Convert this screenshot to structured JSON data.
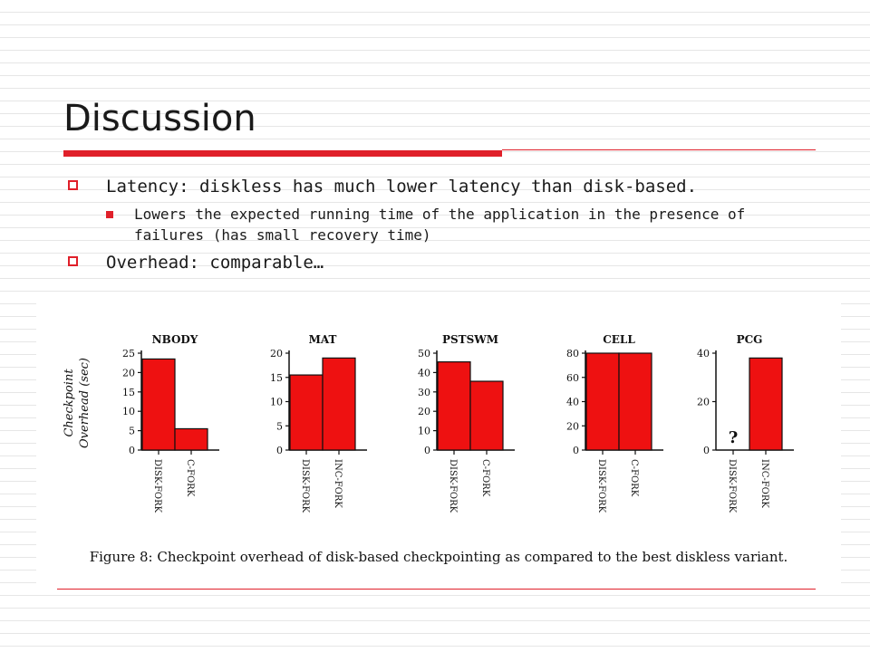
{
  "slide": {
    "title": "Discussion",
    "bullets": [
      "Latency: diskless has much lower latency than disk-based.",
      "Lowers the expected running time of the application in the presence of failures (has small recovery time)",
      "Overhead: comparable…"
    ],
    "caption": "Figure 8: Checkpoint overhead of disk-based checkpointing as compared to the best diskless variant."
  },
  "colors": {
    "accent": "#e0202a",
    "bar": "#ee1111"
  },
  "chart_data": {
    "type": "bar",
    "ylabel": [
      "Checkpoint",
      "Overhead (sec)"
    ],
    "panels": [
      {
        "title": "NBODY",
        "categories": [
          "DISK-FORK",
          "C-FORK"
        ],
        "values": [
          23.5,
          5.5
        ],
        "ylim": [
          0,
          25
        ],
        "ticks": [
          {
            "v": 0,
            "l": "0"
          },
          {
            "v": 5,
            "l": "5"
          },
          {
            "v": 10,
            "l": "10"
          },
          {
            "v": 15,
            "l": "15"
          },
          {
            "v": 20,
            "l": "20"
          },
          {
            "v": 25,
            "l": "25"
          }
        ]
      },
      {
        "title": "MAT",
        "categories": [
          "DISK-FORK",
          "INC-FORK"
        ],
        "values": [
          15.5,
          19
        ],
        "ylim": [
          0,
          20
        ],
        "ticks": [
          {
            "v": 0,
            "l": "0"
          },
          {
            "v": 5,
            "l": "5"
          },
          {
            "v": 10,
            "l": "10"
          },
          {
            "v": 15,
            "l": "15"
          },
          {
            "v": 20,
            "l": "20"
          }
        ]
      },
      {
        "title": "PSTSWM",
        "categories": [
          "DISK-FORK",
          "C-FORK"
        ],
        "values": [
          45.5,
          35.5
        ],
        "ylim": [
          0,
          50
        ],
        "ticks": [
          {
            "v": 0,
            "l": "0"
          },
          {
            "v": 10,
            "l": "10"
          },
          {
            "v": 20,
            "l": "20"
          },
          {
            "v": 30,
            "l": "30"
          },
          {
            "v": 40,
            "l": "40"
          },
          {
            "v": 50,
            "l": "50"
          }
        ]
      },
      {
        "title": "CELL",
        "categories": [
          "DISK-FORK",
          "C-FORK"
        ],
        "values": [
          80,
          80
        ],
        "ylim": [
          0,
          80
        ],
        "ticks": [
          {
            "v": 0,
            "l": "0"
          },
          {
            "v": 20,
            "l": "20"
          },
          {
            "v": 40,
            "l": "40"
          },
          {
            "v": 60,
            "l": "60"
          },
          {
            "v": 80,
            "l": "80"
          }
        ]
      },
      {
        "title": "PCG",
        "categories": [
          "DISK-FORK",
          "INC-FORK"
        ],
        "values": [
          null,
          38
        ],
        "ylim": [
          0,
          40
        ],
        "ticks": [
          {
            "v": 0,
            "l": "0"
          },
          {
            "v": 20,
            "l": "20"
          },
          {
            "v": 40,
            "l": "40"
          }
        ],
        "annotation": "?"
      }
    ]
  }
}
